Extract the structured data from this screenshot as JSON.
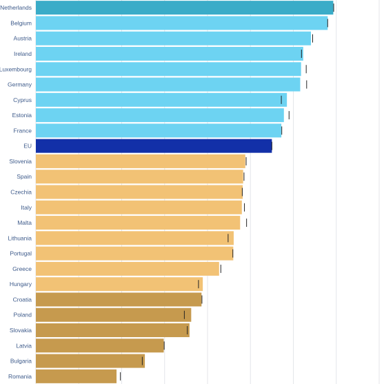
{
  "chart_data": {
    "type": "bar",
    "orientation": "horizontal",
    "title": "",
    "xlabel": "",
    "ylabel": "",
    "grid": true,
    "legend": "none",
    "xlim": [
      0,
      80
    ],
    "categories": [
      "Netherlands",
      "Belgium",
      "Austria",
      "Ireland",
      "Luxembourg",
      "Germany",
      "Cyprus",
      "Estonia",
      "France",
      "EU",
      "Slovenia",
      "Spain",
      "Czechia",
      "Italy",
      "Malta",
      "Lithuania",
      "Portugal",
      "Greece",
      "Hungary",
      "Croatia",
      "Poland",
      "Slovakia",
      "Latvia",
      "Bulgaria",
      "Romania"
    ],
    "values": [
      69.3,
      68.0,
      64.1,
      62.3,
      61.8,
      61.6,
      58.5,
      57.8,
      57.2,
      55.0,
      48.8,
      48.3,
      48.2,
      48.0,
      47.6,
      46.1,
      46.0,
      42.7,
      38.9,
      38.6,
      36.2,
      35.8,
      29.8,
      25.4,
      18.8
    ],
    "markers": [
      69.4,
      68.0,
      64.5,
      61.9,
      63.0,
      63.1,
      57.2,
      59.0,
      57.3,
      55.0,
      49.0,
      48.5,
      48.1,
      48.6,
      49.1,
      44.8,
      45.9,
      43.1,
      37.9,
      38.7,
      34.6,
      35.3,
      29.9,
      24.8,
      19.7
    ],
    "groups": [
      "top",
      "high",
      "high",
      "high",
      "high",
      "high",
      "high",
      "high",
      "high",
      "eu",
      "mid",
      "mid",
      "mid",
      "mid",
      "mid",
      "mid",
      "mid",
      "mid",
      "mid",
      "low",
      "low",
      "low",
      "low",
      "low",
      "low"
    ],
    "colors": {
      "top": "#3aacc8",
      "high": "#6dd3f2",
      "eu": "#1230a8",
      "mid": "#f2c275",
      "low": "#c69a4e",
      "grid": "#e4e6ea",
      "marker": "#222222"
    }
  }
}
